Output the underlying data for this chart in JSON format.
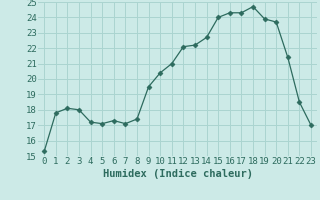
{
  "x": [
    0,
    1,
    2,
    3,
    4,
    5,
    6,
    7,
    8,
    9,
    10,
    11,
    12,
    13,
    14,
    15,
    16,
    17,
    18,
    19,
    20,
    21,
    22,
    23
  ],
  "y": [
    15.3,
    17.8,
    18.1,
    18.0,
    17.2,
    17.1,
    17.3,
    17.1,
    17.4,
    19.5,
    20.4,
    21.0,
    22.1,
    22.2,
    22.7,
    24.0,
    24.3,
    24.3,
    24.7,
    23.9,
    23.7,
    21.4,
    18.5,
    17.0
  ],
  "xlabel": "Humidex (Indice chaleur)",
  "ylim": [
    15,
    25
  ],
  "xlim": [
    -0.5,
    23.5
  ],
  "yticks": [
    15,
    16,
    17,
    18,
    19,
    20,
    21,
    22,
    23,
    24,
    25
  ],
  "xticks": [
    0,
    1,
    2,
    3,
    4,
    5,
    6,
    7,
    8,
    9,
    10,
    11,
    12,
    13,
    14,
    15,
    16,
    17,
    18,
    19,
    20,
    21,
    22,
    23
  ],
  "line_color": "#2d6b5e",
  "marker": "D",
  "marker_size": 2.5,
  "bg_color": "#cceae7",
  "grid_color": "#aad4d0",
  "label_fontsize": 7.5,
  "tick_fontsize": 6.5
}
